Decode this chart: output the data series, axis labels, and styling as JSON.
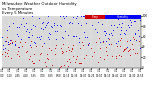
{
  "title": "Milwaukee Weather Outdoor Humidity",
  "subtitle1": "vs Temperature",
  "subtitle2": "Every 5 Minutes",
  "blue_color": "#0000ff",
  "red_color": "#cc0000",
  "legend_blue_label": "Humidity",
  "legend_red_label": "Temp",
  "background_color": "#ffffff",
  "plot_bg_color": "#d8d8d8",
  "ylim": [
    0,
    100
  ],
  "xlim": [
    0,
    288
  ],
  "title_fontsize": 2.8,
  "tick_fontsize": 2.0,
  "dot_size": 0.4,
  "num_points": 288
}
